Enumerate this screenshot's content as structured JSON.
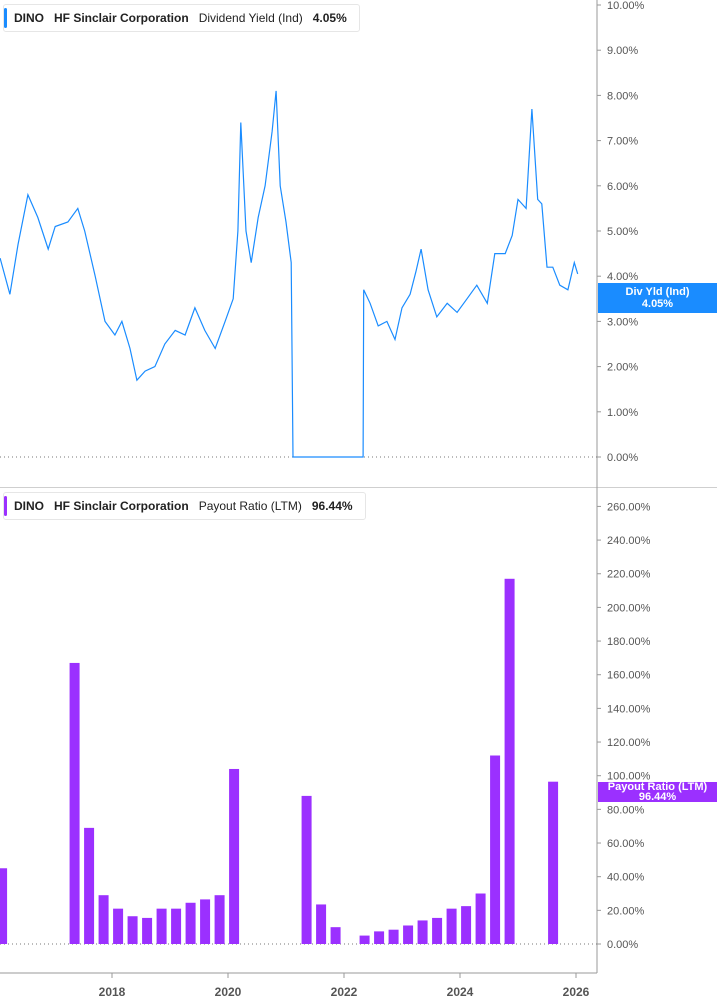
{
  "chart_data": [
    {
      "type": "line",
      "ticker": "DINO",
      "company": "HF Sinclair Corporation",
      "metric": "Dividend Yield (Ind)",
      "value_label": "4.05%",
      "flag_label": "Div Yld (Ind)",
      "flag_value": "4.05%",
      "color": "#1a8cff",
      "ylim": [
        0,
        10
      ],
      "yticks": [
        "0.00%",
        "1.00%",
        "2.00%",
        "3.00%",
        "4.00%",
        "5.00%",
        "6.00%",
        "7.00%",
        "8.00%",
        "9.00%",
        "10.00%"
      ],
      "points": [
        [
          2016.07,
          4.4
        ],
        [
          2016.24,
          3.6
        ],
        [
          2016.38,
          4.7
        ],
        [
          2016.55,
          5.8
        ],
        [
          2016.72,
          5.3
        ],
        [
          2016.9,
          4.6
        ],
        [
          2017.02,
          5.1
        ],
        [
          2017.24,
          5.2
        ],
        [
          2017.41,
          5.5
        ],
        [
          2017.53,
          5.0
        ],
        [
          2017.71,
          4.0
        ],
        [
          2017.88,
          3.0
        ],
        [
          2018.05,
          2.7
        ],
        [
          2018.17,
          3.0
        ],
        [
          2018.31,
          2.4
        ],
        [
          2018.43,
          1.7
        ],
        [
          2018.57,
          1.9
        ],
        [
          2018.74,
          2.0
        ],
        [
          2018.91,
          2.5
        ],
        [
          2019.09,
          2.8
        ],
        [
          2019.26,
          2.7
        ],
        [
          2019.43,
          3.3
        ],
        [
          2019.6,
          2.8
        ],
        [
          2019.78,
          2.4
        ],
        [
          2019.95,
          3.0
        ],
        [
          2020.09,
          3.5
        ],
        [
          2020.17,
          5.0
        ],
        [
          2020.22,
          7.4
        ],
        [
          2020.31,
          5.0
        ],
        [
          2020.4,
          4.3
        ],
        [
          2020.52,
          5.3
        ],
        [
          2020.64,
          6.0
        ],
        [
          2020.76,
          7.2
        ],
        [
          2020.83,
          8.1
        ],
        [
          2020.9,
          6.0
        ],
        [
          2021.0,
          5.2
        ],
        [
          2021.09,
          4.3
        ],
        [
          2021.12,
          0
        ],
        [
          2022.33,
          0
        ],
        [
          2022.34,
          3.7
        ],
        [
          2022.45,
          3.4
        ],
        [
          2022.59,
          2.9
        ],
        [
          2022.74,
          3.0
        ],
        [
          2022.88,
          2.6
        ],
        [
          2023.0,
          3.3
        ],
        [
          2023.14,
          3.6
        ],
        [
          2023.24,
          4.1
        ],
        [
          2023.33,
          4.6
        ],
        [
          2023.45,
          3.7
        ],
        [
          2023.6,
          3.1
        ],
        [
          2023.78,
          3.4
        ],
        [
          2023.95,
          3.2
        ],
        [
          2024.12,
          3.5
        ],
        [
          2024.29,
          3.8
        ],
        [
          2024.47,
          3.4
        ],
        [
          2024.6,
          4.5
        ],
        [
          2024.78,
          4.5
        ],
        [
          2024.9,
          4.9
        ],
        [
          2025.0,
          5.7
        ],
        [
          2025.14,
          5.5
        ],
        [
          2025.24,
          7.7
        ],
        [
          2025.34,
          5.7
        ],
        [
          2025.41,
          5.6
        ],
        [
          2025.5,
          4.2
        ],
        [
          2025.6,
          4.2
        ],
        [
          2025.72,
          3.8
        ],
        [
          2025.86,
          3.7
        ],
        [
          2025.97,
          4.3
        ],
        [
          2026.03,
          4.05
        ]
      ]
    },
    {
      "type": "bar",
      "ticker": "DINO",
      "company": "HF Sinclair Corporation",
      "metric": "Payout Ratio (LTM)",
      "value_label": "96.44%",
      "flag_label": "Payout Ratio (LTM)",
      "flag_value": "96.44%",
      "color": "#9b30ff",
      "ylim": [
        0,
        260
      ],
      "yticks": [
        "0.00%",
        "20.00%",
        "40.00%",
        "60.00%",
        "80.00%",
        "100.00%",
        "120.00%",
        "140.00%",
        "160.00%",
        "180.00%",
        "200.00%",
        "220.00%",
        "240.00%",
        "260.00%"
      ],
      "dates": [
        "2016-03",
        "2017-06",
        "2017-09",
        "2017-12",
        "2018-03",
        "2018-06",
        "2018-09",
        "2018-12",
        "2019-03",
        "2019-06",
        "2019-09",
        "2019-12",
        "2020-03",
        "2021-06",
        "2021-09",
        "2021-12",
        "2022-06",
        "2022-09",
        "2022-12",
        "2023-03",
        "2023-06",
        "2023-09",
        "2023-12",
        "2024-03",
        "2024-06",
        "2024-09",
        "2024-12",
        "2025-09"
      ],
      "values": [
        45,
        167,
        69,
        29,
        21,
        16.5,
        15.5,
        21,
        21,
        24.5,
        26.5,
        29,
        104,
        88,
        23.5,
        10,
        5,
        7.5,
        8.5,
        11,
        14,
        15.5,
        21,
        22.5,
        30,
        112,
        217,
        96.44
      ]
    }
  ],
  "x_axis": {
    "ticks": [
      "2018",
      "2020",
      "2022",
      "2024",
      "2026"
    ]
  }
}
